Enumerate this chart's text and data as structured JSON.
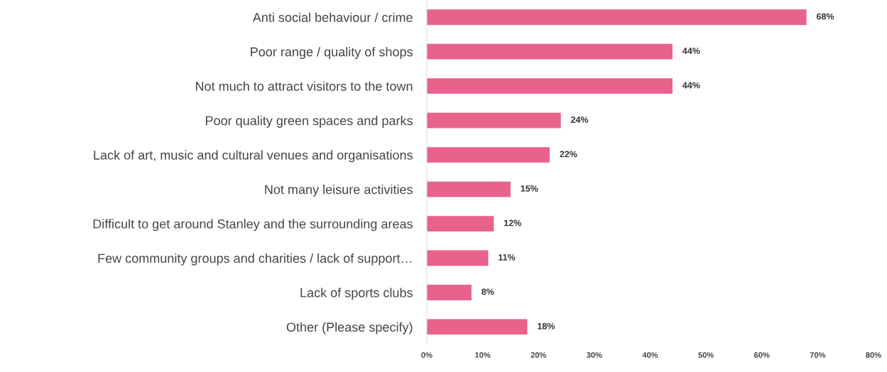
{
  "chart_data": {
    "type": "bar",
    "orientation": "horizontal",
    "categories": [
      "Anti social behaviour / crime",
      "Poor range / quality of shops",
      "Not much to attract visitors to the town",
      "Poor quality green spaces and parks",
      "Lack of art, music and cultural venues and organisations",
      "Not many leisure activities",
      "Difficult to get around Stanley and the surrounding areas",
      "Few community groups and charities / lack of support…",
      "Lack of sports clubs",
      "Other (Please specify)"
    ],
    "values": [
      68,
      44,
      44,
      24,
      22,
      15,
      12,
      11,
      8,
      18
    ],
    "value_labels": [
      "68%",
      "44%",
      "44%",
      "24%",
      "22%",
      "15%",
      "12%",
      "11%",
      "8%",
      "18%"
    ],
    "color": "#e8628c",
    "xlim": [
      0,
      80
    ],
    "xticks": [
      {
        "value": 0,
        "label": "0%"
      },
      {
        "value": 10,
        "label": "10%"
      },
      {
        "value": 20,
        "label": "20%"
      },
      {
        "value": 30,
        "label": "30%"
      },
      {
        "value": 40,
        "label": "40%"
      },
      {
        "value": 50,
        "label": "50%"
      },
      {
        "value": 60,
        "label": "60%"
      },
      {
        "value": 70,
        "label": "70%"
      },
      {
        "value": 80,
        "label": "80%"
      }
    ],
    "grid": false,
    "legend": false
  }
}
